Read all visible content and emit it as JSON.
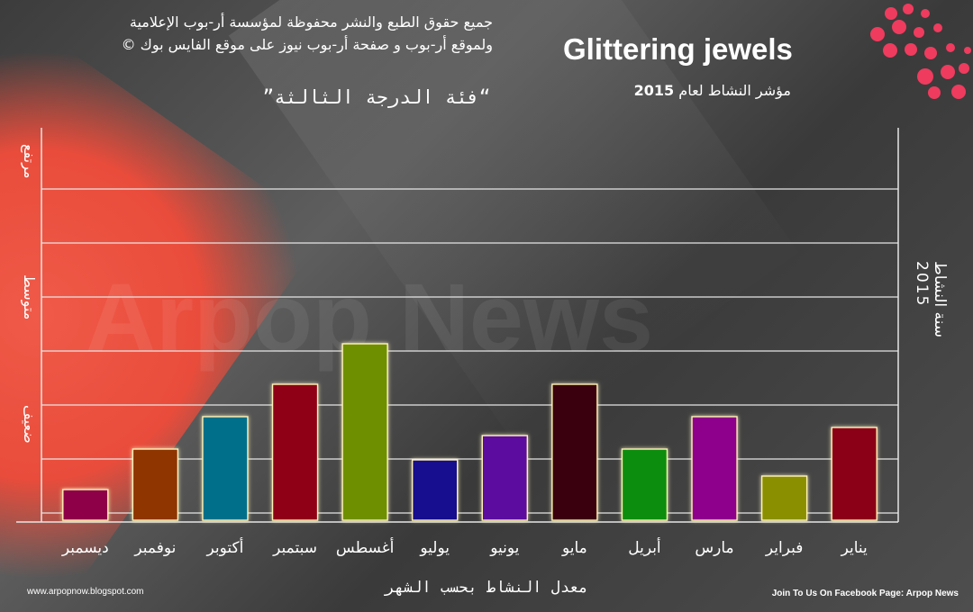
{
  "header": {
    "copyright_line1": "جميع حقوق الطبع والنشر محفوظة لمؤسسة أر-بوب الإعلامية",
    "copyright_line2": "ولموقع أر-بوب و صفحة أر-بوب نيوز على موقع الفايس بوك ©",
    "brand": "Glittering jewels",
    "subtitle_text": "مؤشر النشاط لعام",
    "subtitle_year": "2015",
    "category": "”فئة الدرجة الثالثة“"
  },
  "watermark": "Arpop News",
  "accent_colors": {
    "dots": "#ef3b5e",
    "red_shape": "#e94c3b"
  },
  "chart_data": {
    "type": "bar",
    "title": "مؤشر النشاط لعام 2015",
    "categories": [
      "يناير",
      "فبراير",
      "مارس",
      "أبريل",
      "مايو",
      "يونيو",
      "يوليو",
      "أغسطس",
      "سبتمبر",
      "أكتوبر",
      "نوفمبر",
      "ديسمبر"
    ],
    "values": [
      1.75,
      0.85,
      1.95,
      1.35,
      2.55,
      1.6,
      1.15,
      3.3,
      2.55,
      1.95,
      1.35,
      0.6
    ],
    "colors": [
      "#8b0014",
      "#8a8f00",
      "#8e008c",
      "#0b8d0f",
      "#3a0008",
      "#5c0aa0",
      "#17078f",
      "#6e8f00",
      "#8f0012",
      "#006f8a",
      "#8e3500",
      "#8e0046"
    ],
    "ylim": [
      0,
      7.3
    ],
    "y_level_labels": [
      "ضعيف",
      "متوسط",
      "مرتفع"
    ],
    "xlabel": "معدل النشاط بحسب الشهر",
    "ylabel": "سنة النشاط 2015",
    "grid": true,
    "legend": "none"
  },
  "axis_right": {
    "line1": "سنة النشاط",
    "line2": "2015"
  },
  "footer": {
    "left": "www.arpopnow.blogspot.com",
    "right": "Join To Us On Facebook Page: Arpop News"
  }
}
